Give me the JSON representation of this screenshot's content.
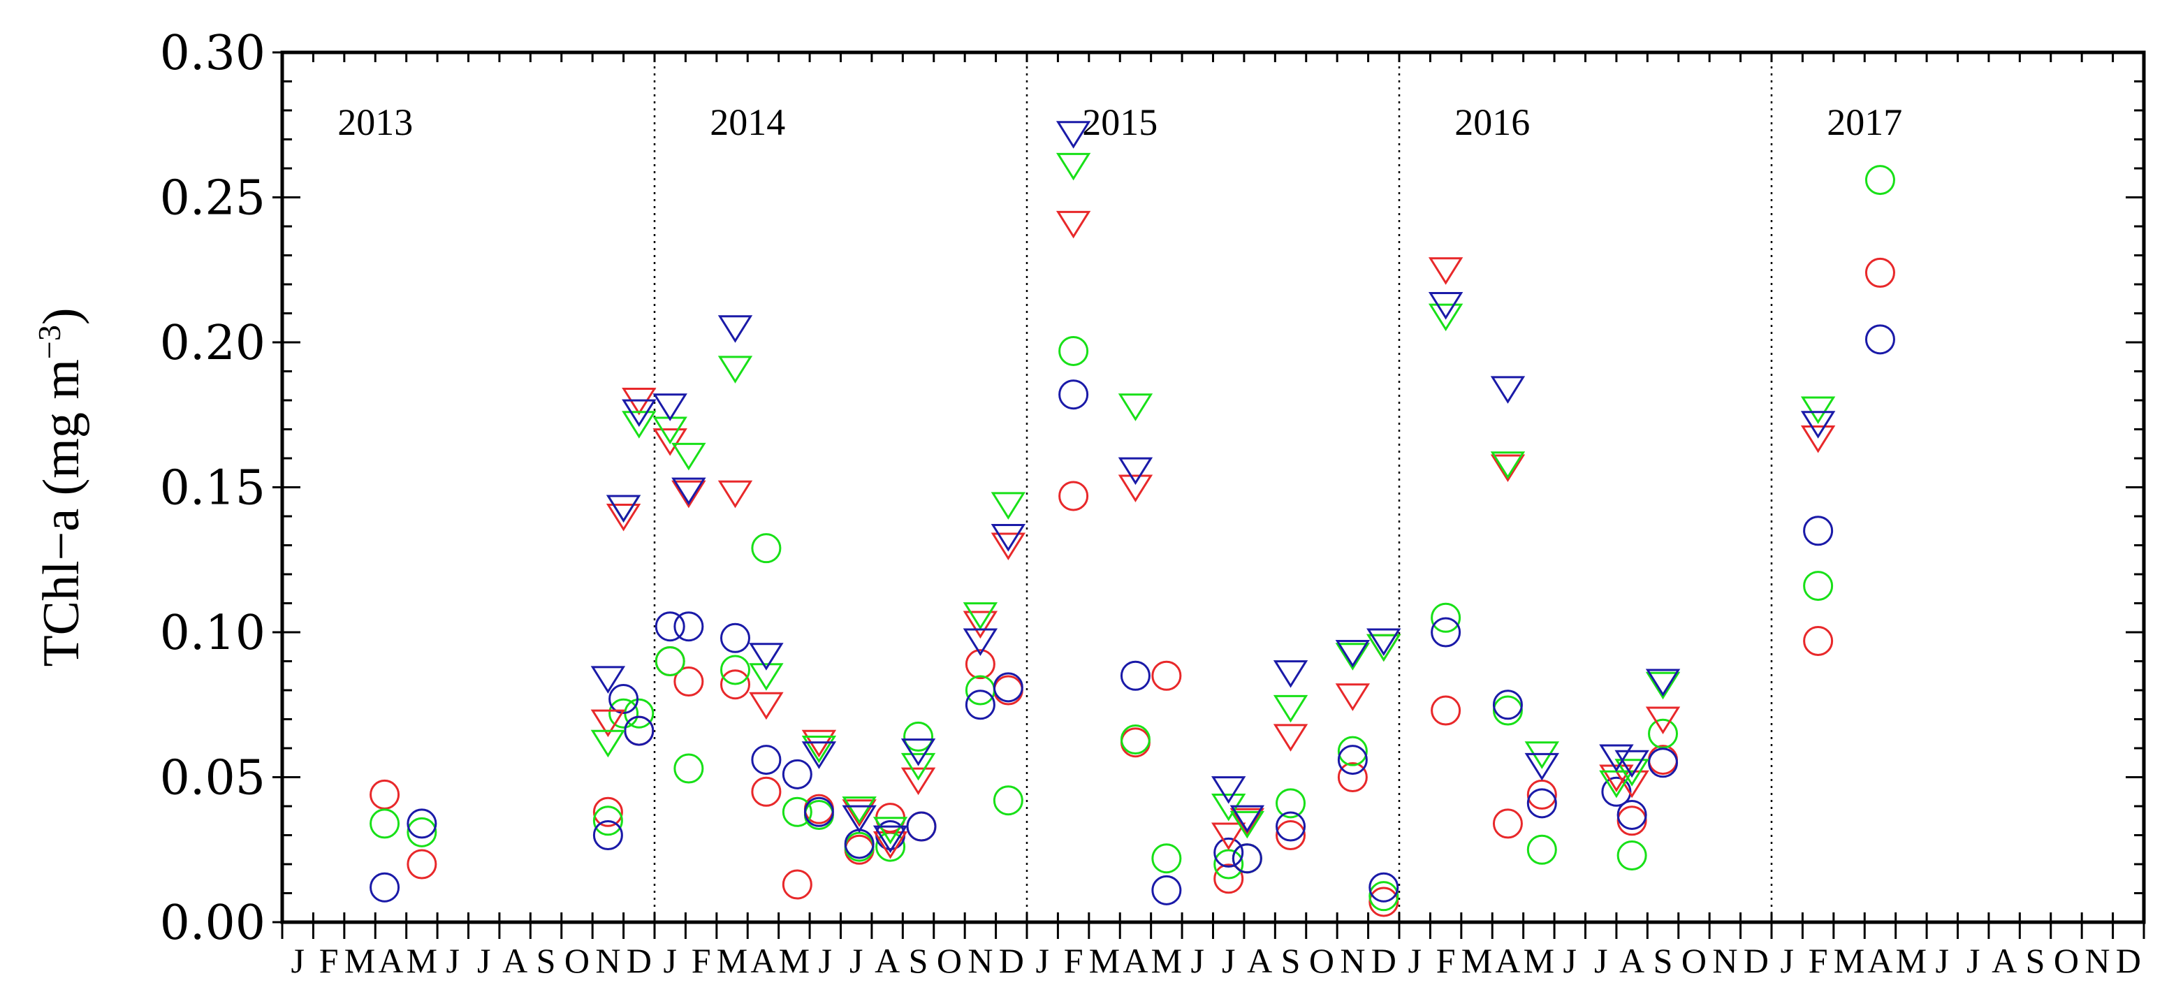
{
  "chart_data": {
    "type": "scatter",
    "title": "",
    "xlabel": "",
    "ylabel": "TChl−a (mg m",
    "ylabel_unit_exponent": "−3",
    "ylabel_unit_close": ")",
    "ylim": [
      0,
      0.3
    ],
    "ytick_labels": [
      "0.00",
      "0.05",
      "0.10",
      "0.15",
      "0.20",
      "0.25",
      "0.30"
    ],
    "x_unit": "month index (0 = Jan 2013)",
    "xlim": [
      0,
      60
    ],
    "month_letters": [
      "J",
      "F",
      "M",
      "A",
      "M",
      "J",
      "J",
      "A",
      "S",
      "O",
      "N",
      "D"
    ],
    "years": [
      "2013",
      "2014",
      "2015",
      "2016",
      "2017"
    ],
    "year_separators": [
      12,
      24,
      36,
      48
    ],
    "grid": false,
    "legend": "none",
    "colors": {
      "red": "#e8282a",
      "green": "#18e018",
      "blue": "#1a1aa8"
    },
    "series": [
      {
        "name": "red circles",
        "color": "red",
        "marker": "circle",
        "points": [
          [
            3.3,
            0.044
          ],
          [
            4.5,
            0.02
          ],
          [
            10.5,
            0.038
          ],
          [
            11.5,
            0.066
          ],
          [
            12.5,
            0.09
          ],
          [
            13.1,
            0.083
          ],
          [
            14.6,
            0.082
          ],
          [
            15.6,
            0.045
          ],
          [
            16.6,
            0.013
          ],
          [
            17.3,
            0.039
          ],
          [
            18.6,
            0.025
          ],
          [
            19.6,
            0.036
          ],
          [
            20.6,
            0.033
          ],
          [
            22.5,
            0.089
          ],
          [
            23.4,
            0.08
          ],
          [
            25.5,
            0.147
          ],
          [
            27.5,
            0.062
          ],
          [
            28.5,
            0.085
          ],
          [
            30.5,
            0.015
          ],
          [
            31.1,
            0.022
          ],
          [
            32.5,
            0.03
          ],
          [
            34.5,
            0.05
          ],
          [
            35.5,
            0.007
          ],
          [
            37.5,
            0.073
          ],
          [
            39.5,
            0.034
          ],
          [
            40.6,
            0.044
          ],
          [
            43.5,
            0.035
          ],
          [
            44.5,
            0.056
          ],
          [
            49.5,
            0.097
          ],
          [
            51.5,
            0.224
          ]
        ]
      },
      {
        "name": "green circles",
        "color": "green",
        "marker": "circle",
        "points": [
          [
            3.3,
            0.034
          ],
          [
            4.5,
            0.031
          ],
          [
            10.5,
            0.035
          ],
          [
            11.0,
            0.072
          ],
          [
            11.5,
            0.072
          ],
          [
            12.5,
            0.09
          ],
          [
            13.1,
            0.053
          ],
          [
            14.6,
            0.087
          ],
          [
            15.6,
            0.129
          ],
          [
            16.6,
            0.038
          ],
          [
            17.3,
            0.037
          ],
          [
            18.6,
            0.026
          ],
          [
            19.6,
            0.026
          ],
          [
            20.5,
            0.064
          ],
          [
            22.5,
            0.08
          ],
          [
            23.4,
            0.042
          ],
          [
            25.5,
            0.197
          ],
          [
            27.5,
            0.063
          ],
          [
            28.5,
            0.022
          ],
          [
            30.5,
            0.02
          ],
          [
            31.1,
            0.022
          ],
          [
            32.5,
            0.041
          ],
          [
            34.5,
            0.059
          ],
          [
            35.5,
            0.009
          ],
          [
            37.5,
            0.105
          ],
          [
            39.5,
            0.073
          ],
          [
            40.6,
            0.025
          ],
          [
            43.5,
            0.023
          ],
          [
            44.5,
            0.065
          ],
          [
            49.5,
            0.116
          ],
          [
            51.5,
            0.256
          ]
        ]
      },
      {
        "name": "blue circles",
        "color": "blue",
        "marker": "circle",
        "points": [
          [
            3.3,
            0.012
          ],
          [
            4.5,
            0.034
          ],
          [
            10.5,
            0.03
          ],
          [
            11.0,
            0.077
          ],
          [
            11.5,
            0.066
          ],
          [
            12.5,
            0.102
          ],
          [
            13.1,
            0.102
          ],
          [
            14.6,
            0.098
          ],
          [
            15.6,
            0.056
          ],
          [
            16.6,
            0.051
          ],
          [
            17.3,
            0.038
          ],
          [
            18.6,
            0.027
          ],
          [
            19.6,
            0.03
          ],
          [
            20.6,
            0.033
          ],
          [
            22.5,
            0.075
          ],
          [
            23.4,
            0.081
          ],
          [
            25.5,
            0.182
          ],
          [
            27.5,
            0.085
          ],
          [
            28.5,
            0.011
          ],
          [
            30.5,
            0.024
          ],
          [
            31.1,
            0.022
          ],
          [
            32.5,
            0.033
          ],
          [
            34.5,
            0.056
          ],
          [
            35.5,
            0.012
          ],
          [
            37.5,
            0.1
          ],
          [
            39.5,
            0.075
          ],
          [
            40.6,
            0.041
          ],
          [
            43.0,
            0.045
          ],
          [
            43.5,
            0.037
          ],
          [
            44.5,
            0.055
          ],
          [
            49.5,
            0.135
          ],
          [
            51.5,
            0.201
          ]
        ]
      },
      {
        "name": "red triangles",
        "color": "red",
        "marker": "triangle-down",
        "points": [
          [
            10.5,
            0.069
          ],
          [
            11.0,
            0.14
          ],
          [
            11.5,
            0.18
          ],
          [
            12.5,
            0.166
          ],
          [
            13.1,
            0.148
          ],
          [
            14.6,
            0.148
          ],
          [
            15.6,
            0.075
          ],
          [
            17.3,
            0.062
          ],
          [
            18.6,
            0.038
          ],
          [
            19.6,
            0.027
          ],
          [
            20.5,
            0.049
          ],
          [
            22.5,
            0.103
          ],
          [
            23.4,
            0.13
          ],
          [
            25.5,
            0.241
          ],
          [
            27.5,
            0.15
          ],
          [
            30.5,
            0.03
          ],
          [
            31.1,
            0.035
          ],
          [
            32.5,
            0.064
          ],
          [
            34.5,
            0.078
          ],
          [
            35.5,
            0.095
          ],
          [
            37.5,
            0.225
          ],
          [
            39.5,
            0.157
          ],
          [
            43.0,
            0.05
          ],
          [
            43.5,
            0.048
          ],
          [
            44.5,
            0.07
          ],
          [
            49.5,
            0.167
          ]
        ]
      },
      {
        "name": "green triangles",
        "color": "green",
        "marker": "triangle-down",
        "points": [
          [
            10.5,
            0.062
          ],
          [
            11.0,
            0.143
          ],
          [
            11.5,
            0.172
          ],
          [
            12.5,
            0.17
          ],
          [
            13.1,
            0.161
          ],
          [
            14.6,
            0.191
          ],
          [
            15.6,
            0.085
          ],
          [
            17.3,
            0.06
          ],
          [
            18.6,
            0.039
          ],
          [
            19.6,
            0.032
          ],
          [
            20.5,
            0.054
          ],
          [
            22.5,
            0.106
          ],
          [
            23.4,
            0.144
          ],
          [
            25.5,
            0.261
          ],
          [
            27.5,
            0.178
          ],
          [
            30.5,
            0.04
          ],
          [
            31.1,
            0.034
          ],
          [
            32.5,
            0.074
          ],
          [
            34.5,
            0.092
          ],
          [
            35.5,
            0.095
          ],
          [
            37.5,
            0.209
          ],
          [
            39.5,
            0.158
          ],
          [
            40.6,
            0.058
          ],
          [
            43.0,
            0.048
          ],
          [
            43.5,
            0.052
          ],
          [
            44.5,
            0.082
          ],
          [
            49.5,
            0.177
          ]
        ]
      },
      {
        "name": "blue triangles",
        "color": "blue",
        "marker": "triangle-down",
        "points": [
          [
            10.5,
            0.084
          ],
          [
            11.0,
            0.143
          ],
          [
            11.5,
            0.176
          ],
          [
            12.5,
            0.178
          ],
          [
            13.1,
            0.149
          ],
          [
            14.6,
            0.205
          ],
          [
            15.6,
            0.092
          ],
          [
            17.3,
            0.058
          ],
          [
            18.6,
            0.036
          ],
          [
            19.6,
            0.029
          ],
          [
            20.5,
            0.059
          ],
          [
            22.5,
            0.097
          ],
          [
            23.4,
            0.133
          ],
          [
            25.5,
            0.272
          ],
          [
            27.5,
            0.156
          ],
          [
            30.5,
            0.046
          ],
          [
            31.1,
            0.036
          ],
          [
            32.5,
            0.086
          ],
          [
            34.5,
            0.093
          ],
          [
            35.5,
            0.097
          ],
          [
            37.5,
            0.213
          ],
          [
            39.5,
            0.184
          ],
          [
            40.6,
            0.054
          ],
          [
            43.0,
            0.057
          ],
          [
            43.5,
            0.055
          ],
          [
            44.5,
            0.083
          ],
          [
            49.5,
            0.172
          ]
        ]
      }
    ]
  }
}
